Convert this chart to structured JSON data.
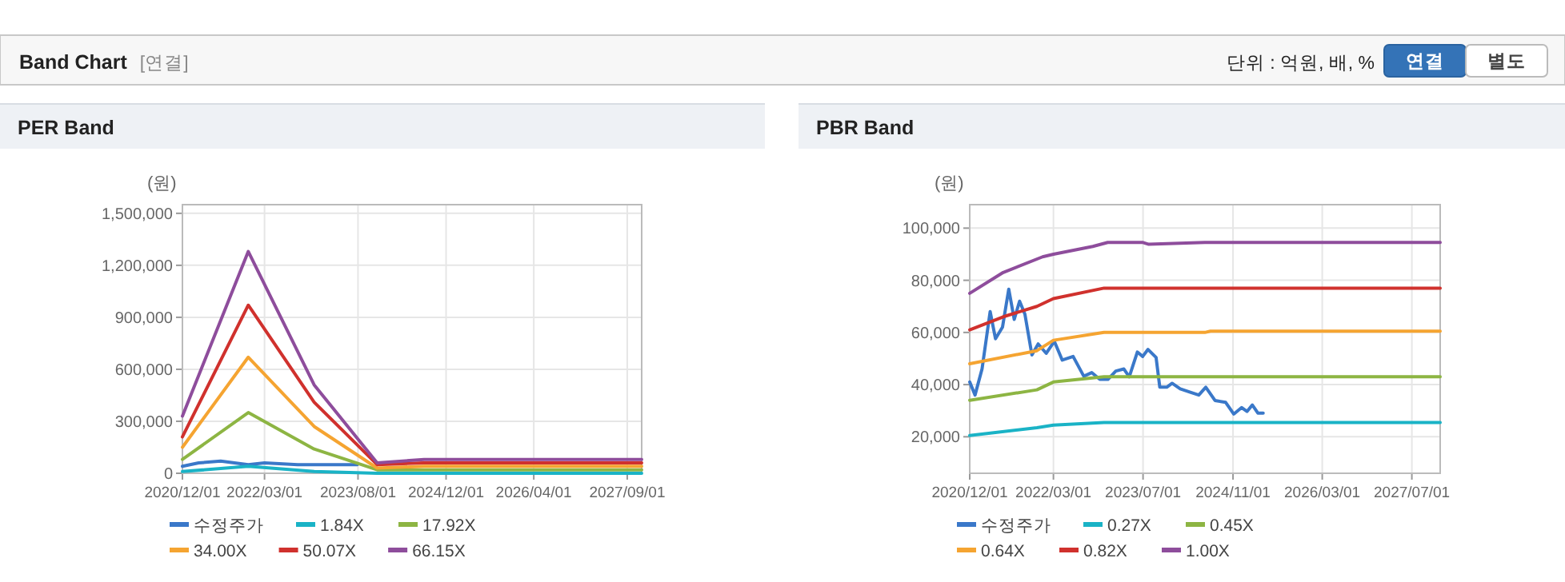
{
  "chart_data": [
    {
      "type": "other",
      "title": "Band Chart",
      "annotations": [
        "[연결]",
        "단위 : 억원, 배, %",
        "연결",
        "별도"
      ]
    },
    {
      "type": "line",
      "title": "PER Band",
      "ylabel": "(원)",
      "grid": true,
      "legend": "bottom",
      "marker": "none",
      "line_style": "solid",
      "xlim": [
        "2020-12-01",
        "2027-11-20"
      ],
      "xticks": [
        {
          "value": "2020-12-01",
          "label": "2020/12/01"
        },
        {
          "value": "2022-03-01",
          "label": "2022/03/01"
        },
        {
          "value": "2023-08-01",
          "label": "2023/08/01"
        },
        {
          "value": "2024-12-01",
          "label": "2024/12/01"
        },
        {
          "value": "2026-04-01",
          "label": "2026/04/01"
        },
        {
          "value": "2027-09-01",
          "label": "2027/09/01"
        }
      ],
      "ylim": [
        0,
        1550000
      ],
      "yticks": [
        0,
        {
          "value": 300000,
          "label": "300,000"
        },
        {
          "value": 600000,
          "label": "600,000"
        },
        {
          "value": 900000,
          "label": "900,000"
        },
        {
          "value": 1200000,
          "label": "1,200,000"
        },
        {
          "value": 1500000,
          "label": "1,500,000"
        }
      ],
      "series": [
        {
          "name": "수정주가",
          "color": "#3a78c9",
          "x": [
            "2020-12-01",
            "2021-03-01",
            "2021-07-01",
            "2021-12-01",
            "2022-03-01",
            "2022-09-01",
            "2023-03-01",
            "2023-07-28"
          ],
          "values": [
            40000,
            60000,
            70000,
            50000,
            60000,
            50000,
            50000,
            50000
          ]
        },
        {
          "name": "1.84X",
          "color": "#1ab3c6",
          "x": [
            "2020-12-01",
            "2021-12-01",
            "2022-12-01",
            "2023-11-15",
            "2024-08-01",
            "2027-11-20"
          ],
          "values": [
            10000,
            40000,
            10000,
            0,
            0,
            0
          ]
        },
        {
          "name": "17.92X",
          "color": "#8db543",
          "x": [
            "2020-12-01",
            "2021-12-01",
            "2022-12-01",
            "2023-11-15",
            "2024-08-01",
            "2027-11-20"
          ],
          "values": [
            80000,
            350000,
            140000,
            20000,
            20000,
            20000
          ]
        },
        {
          "name": "34.00X",
          "color": "#f5a431",
          "x": [
            "2020-12-01",
            "2021-12-01",
            "2022-12-01",
            "2023-11-15",
            "2024-08-01",
            "2027-11-20"
          ],
          "values": [
            150000,
            670000,
            270000,
            30000,
            40000,
            40000
          ]
        },
        {
          "name": "50.07X",
          "color": "#d0312d",
          "x": [
            "2020-12-01",
            "2021-12-01",
            "2022-12-01",
            "2023-11-15",
            "2024-08-01",
            "2027-11-20"
          ],
          "values": [
            210000,
            970000,
            410000,
            50000,
            60000,
            60000
          ]
        },
        {
          "name": "66.15X",
          "color": "#8e4d9c",
          "x": [
            "2020-12-01",
            "2021-12-01",
            "2022-12-01",
            "2023-11-15",
            "2024-08-01",
            "2027-11-20"
          ],
          "values": [
            330000,
            1280000,
            510000,
            60000,
            80000,
            80000
          ]
        }
      ]
    },
    {
      "type": "line",
      "title": "PBR Band",
      "ylabel": "(원)",
      "grid": true,
      "legend": "bottom",
      "marker": "none",
      "line_style": "solid",
      "xlim": [
        "2020-12-01",
        "2027-12-02"
      ],
      "xticks": [
        {
          "value": "2020-12-01",
          "label": "2020/12/01"
        },
        {
          "value": "2022-03-01",
          "label": "2022/03/01"
        },
        {
          "value": "2023-07-01",
          "label": "2023/07/01"
        },
        {
          "value": "2024-11-01",
          "label": "2024/11/01"
        },
        {
          "value": "2026-03-01",
          "label": "2026/03/01"
        },
        {
          "value": "2027-07-01",
          "label": "2027/07/01"
        }
      ],
      "ylim": [
        6000,
        109000
      ],
      "yticks": [
        {
          "value": 20000,
          "label": "20,000"
        },
        {
          "value": 40000,
          "label": "40,000"
        },
        {
          "value": 60000,
          "label": "60,000"
        },
        {
          "value": 80000,
          "label": "80,000"
        },
        {
          "value": 100000,
          "label": "100,000"
        }
      ],
      "series": [
        {
          "name": "수정주가",
          "color": "#3a78c9",
          "x": [
            "2020-12-01",
            "2020-12-30",
            "2021-02-06",
            "2021-03-22",
            "2021-04-20",
            "2021-05-28",
            "2021-07-01",
            "2021-07-31",
            "2021-08-29",
            "2021-09-27",
            "2021-11-04",
            "2021-12-08",
            "2022-01-21",
            "2022-03-06",
            "2022-04-18",
            "2022-06-16",
            "2022-08-13",
            "2022-09-25",
            "2022-11-08",
            "2022-12-22",
            "2023-02-03",
            "2023-03-19",
            "2023-04-17",
            "2023-05-31",
            "2023-06-29",
            "2023-07-28",
            "2023-09-10",
            "2023-09-30",
            "2023-11-07",
            "2023-12-06",
            "2024-01-19",
            "2024-03-17",
            "2024-04-29",
            "2024-06-06",
            "2024-07-26",
            "2024-09-22",
            "2024-11-05",
            "2024-12-18",
            "2025-01-16",
            "2025-02-14",
            "2025-03-16",
            "2025-04-14"
          ],
          "values": [
            41000,
            36000,
            46000,
            68000,
            57600,
            62000,
            76600,
            65000,
            72000,
            67000,
            51400,
            55600,
            52000,
            56600,
            49400,
            50800,
            43200,
            44600,
            42000,
            42000,
            45200,
            46000,
            43000,
            52500,
            50800,
            53500,
            50400,
            39000,
            39000,
            40500,
            38400,
            37000,
            36000,
            39000,
            33900,
            33200,
            28700,
            31200,
            29700,
            32200,
            29100,
            29100
          ]
        },
        {
          "name": "0.27X",
          "color": "#1ab3c6",
          "x": [
            "2020-12-01",
            "2021-12-01",
            "2022-03-01",
            "2022-12-01",
            "2027-12-02"
          ],
          "values": [
            20500,
            23500,
            24500,
            25500,
            25500
          ]
        },
        {
          "name": "0.45X",
          "color": "#8db543",
          "x": [
            "2020-12-01",
            "2021-12-01",
            "2022-03-01",
            "2022-12-01",
            "2027-12-02"
          ],
          "values": [
            34000,
            38000,
            41000,
            43000,
            43000
          ]
        },
        {
          "name": "0.64X",
          "color": "#f5a431",
          "x": [
            "2020-12-01",
            "2021-12-01",
            "2022-03-01",
            "2022-12-01",
            "2024-06-01",
            "2024-07-01",
            "2027-12-02"
          ],
          "values": [
            48000,
            53000,
            57000,
            60000,
            60000,
            60500,
            60500
          ]
        },
        {
          "name": "0.82X",
          "color": "#d0312d",
          "x": [
            "2020-12-01",
            "2021-06-01",
            "2021-12-01",
            "2022-03-01",
            "2022-12-01",
            "2027-12-02"
          ],
          "values": [
            61000,
            66000,
            70000,
            73000,
            77000,
            77000
          ]
        },
        {
          "name": "1.00X",
          "color": "#8e4d9c",
          "x": [
            "2020-12-01",
            "2021-06-01",
            "2022-01-01",
            "2022-03-01",
            "2022-10-01",
            "2022-12-21",
            "2023-07-01",
            "2023-08-01",
            "2024-06-01",
            "2027-12-02"
          ],
          "values": [
            75000,
            83000,
            89000,
            90000,
            93000,
            94500,
            94500,
            93800,
            94500,
            94500
          ]
        }
      ]
    }
  ]
}
